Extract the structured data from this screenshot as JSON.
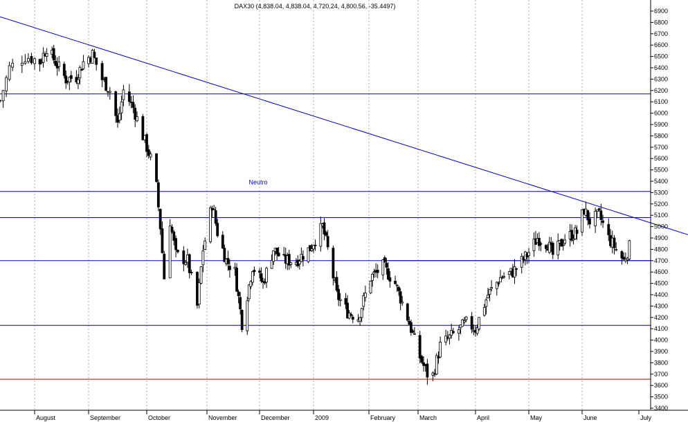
{
  "chart_data": {
    "type": "candlestick",
    "title": "DAX30 (4,838.04, 4,838.04, 4,720.24, 4,800.56, -35.4497)",
    "xlabel": "",
    "ylabel": "",
    "ylim": [
      3400,
      6900
    ],
    "yticks": [
      3400,
      3500,
      3600,
      3700,
      3800,
      3900,
      4000,
      4100,
      4200,
      4300,
      4400,
      4500,
      4600,
      4700,
      4800,
      4900,
      5000,
      5100,
      5200,
      5300,
      5400,
      5500,
      5600,
      5700,
      5800,
      5900,
      6000,
      6100,
      6200,
      6300,
      6400,
      6500,
      6600,
      6700,
      6800,
      6900
    ],
    "months": [
      "August",
      "September",
      "October",
      "November",
      "December",
      "2009",
      "February",
      "March",
      "April",
      "May",
      "June",
      "July"
    ],
    "grid": "vertical dotted at month starts",
    "colors": {
      "candle": "#000000",
      "grid": "#a8a8a8",
      "trendline": "#0000c8",
      "level": "#0000c8",
      "support_red": "#c00000"
    },
    "annotations": [
      {
        "text": "Neutro",
        "y": 5390
      }
    ],
    "horizontal_levels": [
      {
        "y": 6170,
        "color": "#0000c8"
      },
      {
        "y": 5310,
        "color": "#0000c8"
      },
      {
        "y": 5080,
        "color": "#0000c8"
      },
      {
        "y": 4700,
        "color": "#0000c8"
      },
      {
        "y": 4130,
        "color": "#0000c8"
      },
      {
        "y": 3655,
        "color": "#c00000"
      }
    ],
    "trendline": {
      "start": {
        "date": "2008-07-21",
        "value": 6850
      },
      "end": {
        "date": "2009-07-08",
        "value": 5020
      }
    },
    "segment_level": {
      "from_date": "2009-02-12",
      "to_date": "2009-07-06",
      "y": 4700
    },
    "close_points": [
      {
        "date": "2008-07-21",
        "close": 6110
      },
      {
        "date": "2008-07-24",
        "close": 6400
      },
      {
        "date": "2008-07-29",
        "close": 6500
      },
      {
        "date": "2008-08-04",
        "close": 6450
      },
      {
        "date": "2008-08-08",
        "close": 6580
      },
      {
        "date": "2008-08-13",
        "close": 6450
      },
      {
        "date": "2008-08-19",
        "close": 6300
      },
      {
        "date": "2008-08-25",
        "close": 6320
      },
      {
        "date": "2008-08-29",
        "close": 6450
      },
      {
        "date": "2008-09-03",
        "close": 6520
      },
      {
        "date": "2008-09-08",
        "close": 6300
      },
      {
        "date": "2008-09-12",
        "close": 6200
      },
      {
        "date": "2008-09-16",
        "close": 5900
      },
      {
        "date": "2008-09-19",
        "close": 6200
      },
      {
        "date": "2008-09-24",
        "close": 6050
      },
      {
        "date": "2008-09-29",
        "close": 5800
      },
      {
        "date": "2008-10-03",
        "close": 5600
      },
      {
        "date": "2008-10-06",
        "close": 5350
      },
      {
        "date": "2008-10-08",
        "close": 5000
      },
      {
        "date": "2008-10-10",
        "close": 4550
      },
      {
        "date": "2008-10-13",
        "close": 5050
      },
      {
        "date": "2008-10-16",
        "close": 4750
      },
      {
        "date": "2008-10-22",
        "close": 4700
      },
      {
        "date": "2008-10-27",
        "close": 4300
      },
      {
        "date": "2008-10-30",
        "close": 4800
      },
      {
        "date": "2008-11-04",
        "close": 5200
      },
      {
        "date": "2008-11-07",
        "close": 4950
      },
      {
        "date": "2008-11-12",
        "close": 4700
      },
      {
        "date": "2008-11-17",
        "close": 4600
      },
      {
        "date": "2008-11-21",
        "close": 4150
      },
      {
        "date": "2008-11-24",
        "close": 4400
      },
      {
        "date": "2008-11-27",
        "close": 4650
      },
      {
        "date": "2008-12-03",
        "close": 4500
      },
      {
        "date": "2008-12-09",
        "close": 4800
      },
      {
        "date": "2008-12-15",
        "close": 4700
      },
      {
        "date": "2008-12-22",
        "close": 4700
      },
      {
        "date": "2008-12-30",
        "close": 4810
      },
      {
        "date": "2009-01-06",
        "close": 5000
      },
      {
        "date": "2009-01-09",
        "close": 4800
      },
      {
        "date": "2009-01-14",
        "close": 4400
      },
      {
        "date": "2009-01-20",
        "close": 4250
      },
      {
        "date": "2009-01-26",
        "close": 4200
      },
      {
        "date": "2009-02-02",
        "close": 4550
      },
      {
        "date": "2009-02-09",
        "close": 4650
      },
      {
        "date": "2009-02-16",
        "close": 4500
      },
      {
        "date": "2009-02-23",
        "close": 4200
      },
      {
        "date": "2009-03-02",
        "close": 3850
      },
      {
        "date": "2009-03-06",
        "close": 3700
      },
      {
        "date": "2009-03-09",
        "close": 3690
      },
      {
        "date": "2009-03-13",
        "close": 3950
      },
      {
        "date": "2009-03-20",
        "close": 4050
      },
      {
        "date": "2009-03-27",
        "close": 4150
      },
      {
        "date": "2009-04-01",
        "close": 4100
      },
      {
        "date": "2009-04-08",
        "close": 4400
      },
      {
        "date": "2009-04-15",
        "close": 4550
      },
      {
        "date": "2009-04-22",
        "close": 4600
      },
      {
        "date": "2009-04-30",
        "close": 4750
      },
      {
        "date": "2009-05-06",
        "close": 4900
      },
      {
        "date": "2009-05-12",
        "close": 4850
      },
      {
        "date": "2009-05-15",
        "close": 4750
      },
      {
        "date": "2009-05-22",
        "close": 4900
      },
      {
        "date": "2009-05-29",
        "close": 4950
      },
      {
        "date": "2009-06-02",
        "close": 5150
      },
      {
        "date": "2009-06-05",
        "close": 5050
      },
      {
        "date": "2009-06-10",
        "close": 5100
      },
      {
        "date": "2009-06-15",
        "close": 4900
      },
      {
        "date": "2009-06-19",
        "close": 4800
      },
      {
        "date": "2009-06-23",
        "close": 4700
      },
      {
        "date": "2009-06-26",
        "close": 4820
      }
    ]
  }
}
